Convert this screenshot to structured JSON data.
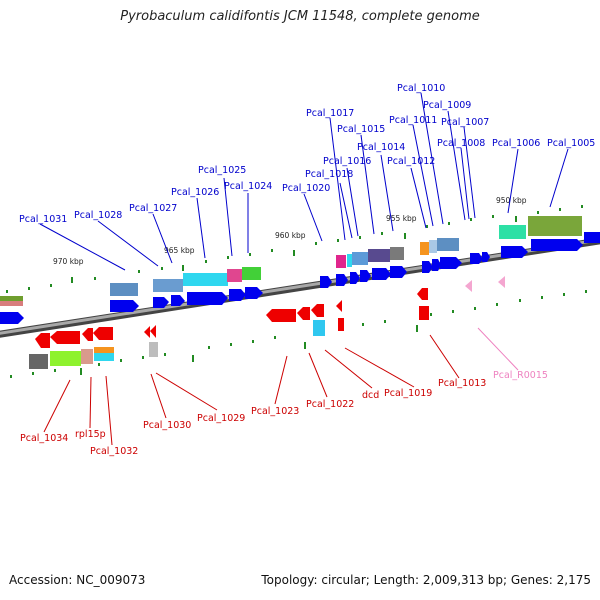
{
  "title": "Pyrobaculum calidifontis JCM 11548, complete genome",
  "footer": {
    "accession": "Accession: NC_009073",
    "summary": "Topology: circular; Length: 2,009,313 bp; Genes: 2,175"
  },
  "colors": {
    "forward_label": "#0000cc",
    "reverse_label": "#cc0000",
    "rna_label": "#ee82c0",
    "forward_gene": "#0000ee",
    "reverse_gene": "#ee0000",
    "rna_gene": "#f4a6d0",
    "axis": "#7a7a7a",
    "tick": "#228b22"
  },
  "kbp_labels": [
    "970 kbp",
    "965 kbp",
    "960 kbp",
    "955 kbp",
    "950 kbp"
  ],
  "forward_labels": [
    "Pcal_1031",
    "Pcal_1028",
    "Pcal_1027",
    "Pcal_1026",
    "Pcal_1025",
    "Pcal_1024",
    "Pcal_1020",
    "Pcal_1018",
    "Pcal_1017",
    "Pcal_1016",
    "Pcal_1015",
    "Pcal_1014",
    "Pcal_1012",
    "Pcal_1011",
    "Pcal_1010",
    "Pcal_1009",
    "Pcal_1008",
    "Pcal_1007",
    "Pcal_1006",
    "Pcal_1005"
  ],
  "reverse_labels": [
    "Pcal_1034",
    "rpl15p",
    "Pcal_1032",
    "Pcal_1030",
    "Pcal_1029",
    "Pcal_1023",
    "Pcal_1022",
    "dcd",
    "Pcal_1019",
    "Pcal_1013"
  ],
  "rna_labels": [
    "Pcal_R0015"
  ]
}
